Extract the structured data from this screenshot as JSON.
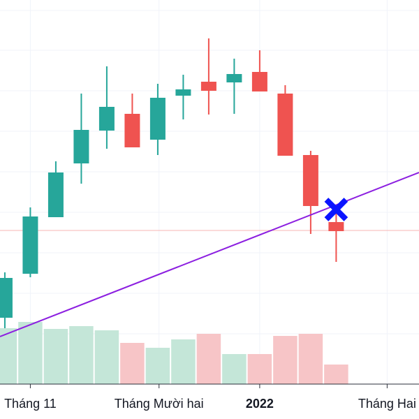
{
  "chart_data": {
    "type": "candlestick",
    "x": [
      0,
      1,
      2,
      3,
      4,
      5,
      6,
      7,
      8,
      9,
      10,
      11,
      12,
      13
    ],
    "open": [
      95,
      158,
      239,
      316,
      363,
      387,
      350,
      413,
      433,
      432,
      447,
      416,
      328,
      232
    ],
    "high": [
      160,
      253,
      319,
      416,
      455,
      416,
      430,
      443,
      495,
      466,
      478,
      428,
      334,
      250
    ],
    "low": [
      80,
      153,
      239,
      287,
      337,
      339,
      328,
      379,
      386,
      387,
      419,
      327,
      215,
      175
    ],
    "close": [
      152,
      240,
      303,
      364,
      397,
      339,
      410,
      422,
      420,
      444,
      419,
      327,
      255,
      219
    ],
    "colors": {
      "up": "#26a69a",
      "down": "#ef5350",
      "volume_up": "#c4e6d8",
      "volume_down": "#f7c5c7"
    },
    "volume": [
      80,
      89,
      79,
      83,
      77,
      59,
      52,
      64,
      72,
      43,
      43,
      69,
      72,
      28
    ],
    "xlim": [
      -0.19,
      16.25
    ],
    "ylim": [
      0,
      550
    ],
    "volume_lim": [
      0,
      550
    ],
    "xticks": [
      {
        "value": 1,
        "label": "Tháng 11"
      },
      {
        "value": 6.05,
        "label": "Tháng Mười hai"
      },
      {
        "value": 10,
        "label": "2022"
      },
      {
        "value": 15,
        "label": "Tháng Hai"
      }
    ],
    "yticks": [
      72,
      130,
      188,
      246,
      304,
      362,
      420,
      478,
      535
    ],
    "grid": true,
    "price_line": {
      "value": 220,
      "color": "#f7b4b3"
    },
    "trend_line": {
      "x": [
        -0.19,
        16.25
      ],
      "values": [
        68,
        303
      ],
      "color": "#8c1fe0"
    },
    "marker": {
      "x": 13,
      "value": 250,
      "color": "#0a14ff"
    }
  }
}
